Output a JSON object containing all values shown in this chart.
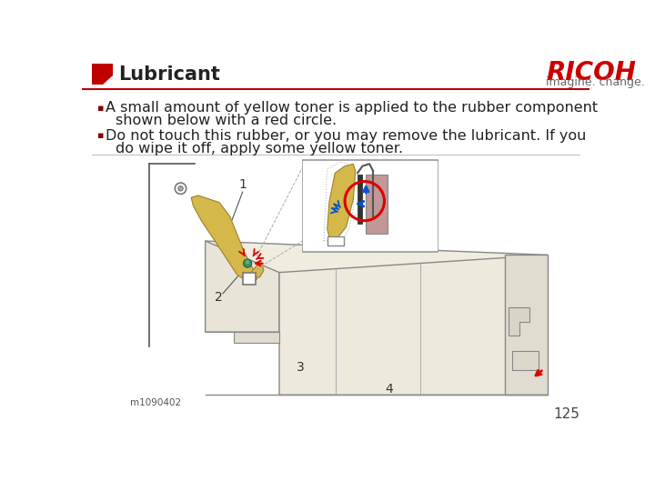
{
  "title": "Lubricant",
  "ricoh_text": "RICOH",
  "ricoh_sub": "imagine. change.",
  "bullet1_line1": "A small amount of yellow toner is applied to the rubber component",
  "bullet1_line2": "shown below with a red circle.",
  "bullet2_line1": "Do not touch this rubber, or you may remove the lubricant. If you",
  "bullet2_line2": "do wipe it off, apply some yellow toner.",
  "page_number": "125",
  "bg_color": "#ffffff",
  "header_red": "#c00000",
  "ricoh_red": "#cc0000",
  "text_color": "#222222",
  "line_color": "#c00000",
  "bullet_color": "#8b0000",
  "title_fontsize": 15,
  "body_fontsize": 11.5,
  "ricoh_fontsize": 20,
  "ricoh_sub_fontsize": 9
}
